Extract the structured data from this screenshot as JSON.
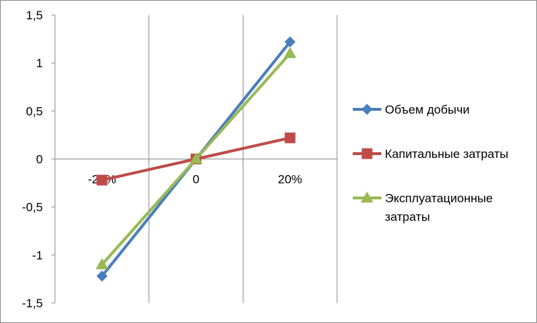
{
  "chart_data": {
    "type": "line",
    "categories": [
      "-20%",
      "0",
      "20%"
    ],
    "series": [
      {
        "name": "Объем добычи",
        "values": [
          -1.22,
          0,
          1.22
        ],
        "color": "#4a7ebb",
        "marker": "diamond"
      },
      {
        "name": "Капитальные затраты",
        "values": [
          -0.22,
          0,
          0.22
        ],
        "color": "#be4b48",
        "marker": "square"
      },
      {
        "name": "Эксплуатационные затраты",
        "values": [
          -1.1,
          0,
          1.1
        ],
        "color": "#98b954",
        "marker": "triangle"
      }
    ],
    "yticks": [
      "1,5",
      "1",
      "0,5",
      "0",
      "-0,5",
      "-1",
      "-1,5"
    ],
    "ylim": [
      -1.5,
      1.5
    ],
    "legend_position": "right",
    "gridlines": "vertical-category"
  }
}
